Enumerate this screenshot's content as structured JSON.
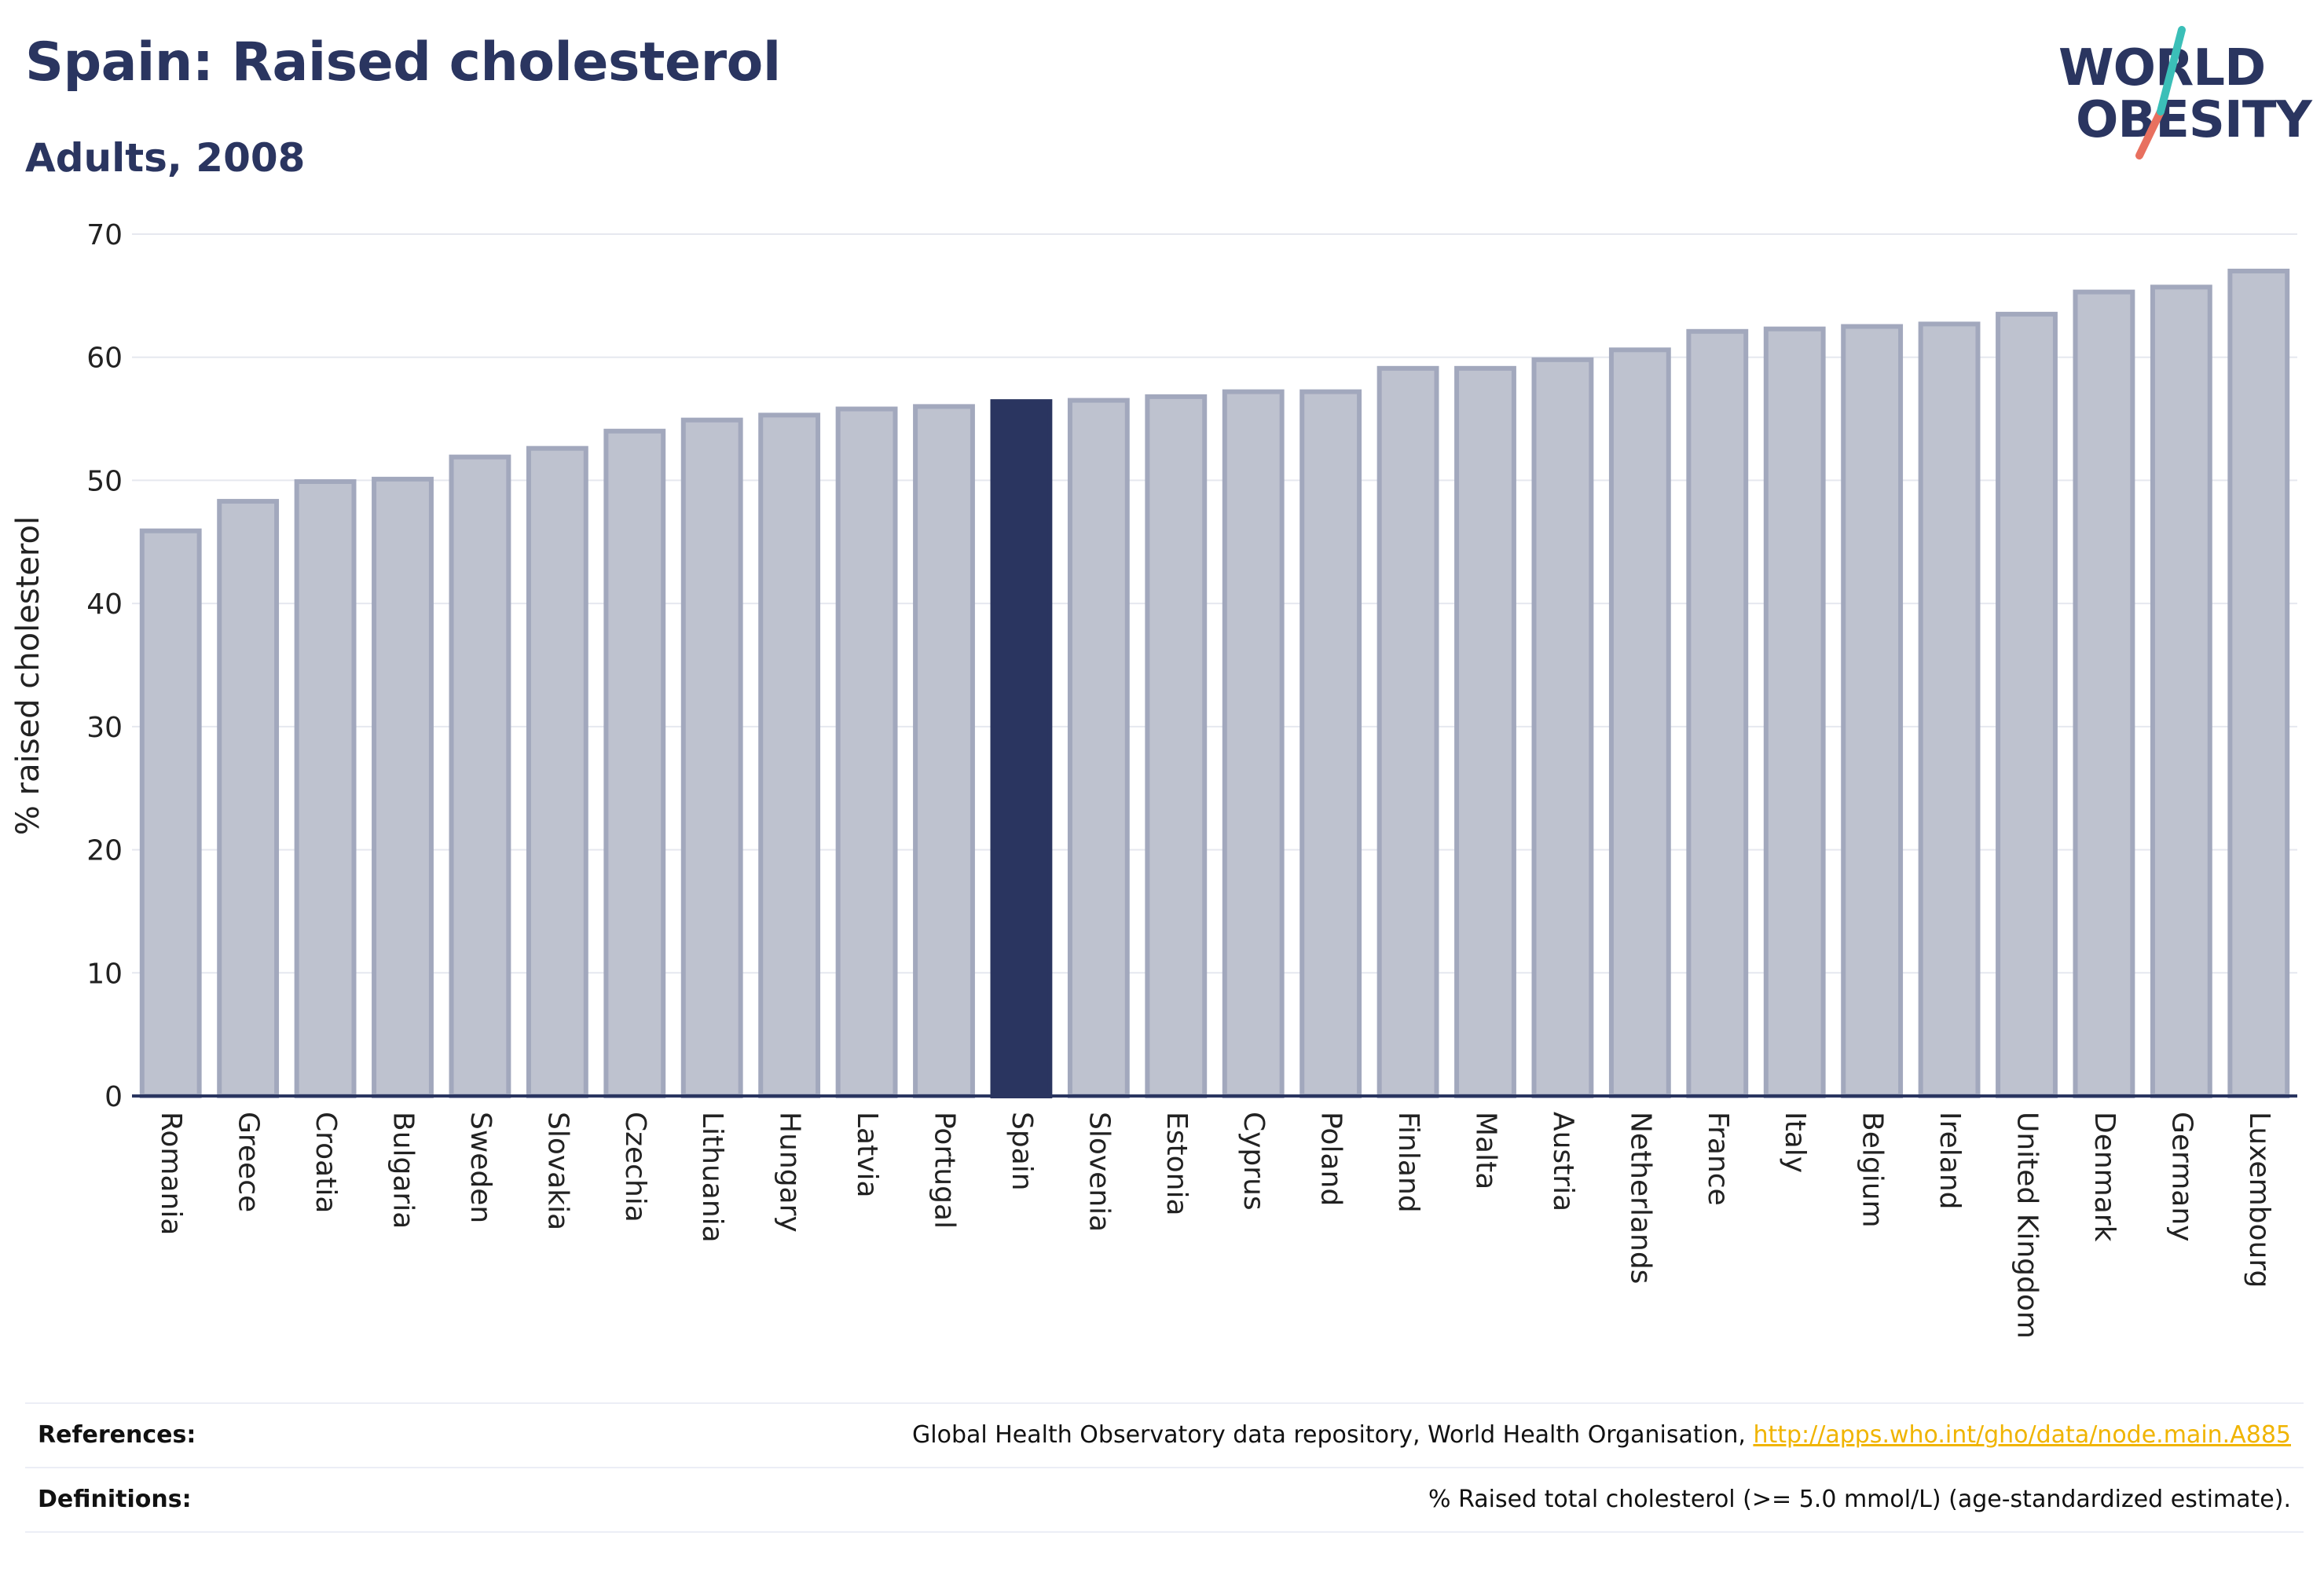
{
  "header": {
    "title": "Spain: Raised cholesterol",
    "subtitle": "Adults, 2008"
  },
  "logo": {
    "line1": "WORLD",
    "line2": "OBESITY"
  },
  "chart_data": {
    "type": "bar",
    "ylabel": "% raised cholesterol",
    "ylim": [
      0,
      70
    ],
    "yticks": [
      0,
      10,
      20,
      30,
      40,
      50,
      60,
      70
    ],
    "grid": true,
    "highlight": "Spain",
    "colors": {
      "default": "#bec2cf",
      "border": "#a2a8bd",
      "highlight": "#2a3560"
    },
    "categories": [
      "Romania",
      "Greece",
      "Croatia",
      "Bulgaria",
      "Sweden",
      "Slovakia",
      "Czechia",
      "Lithuania",
      "Hungary",
      "Latvia",
      "Portugal",
      "Spain",
      "Slovenia",
      "Estonia",
      "Cyprus",
      "Poland",
      "Finland",
      "Malta",
      "Austria",
      "Netherlands",
      "France",
      "Italy",
      "Belgium",
      "Ireland",
      "United Kingdom",
      "Denmark",
      "Germany",
      "Luxembourg"
    ],
    "values": [
      45.9,
      48.3,
      49.9,
      50.1,
      51.9,
      52.6,
      54.0,
      54.9,
      55.3,
      55.8,
      56.0,
      56.4,
      56.5,
      56.8,
      57.2,
      57.2,
      59.1,
      59.1,
      59.8,
      60.6,
      62.1,
      62.3,
      62.5,
      62.7,
      63.5,
      65.3,
      65.7,
      67.0
    ]
  },
  "footer": {
    "references_label": "References:",
    "references_text": "Global Health Observatory data repository, World Health Organisation, ",
    "references_link": "http://apps.who.int/gho/data/node.main.A885",
    "definitions_label": "Definitions:",
    "definitions_text": "% Raised total cholesterol (>= 5.0 mmol/L) (age-standardized estimate)."
  }
}
